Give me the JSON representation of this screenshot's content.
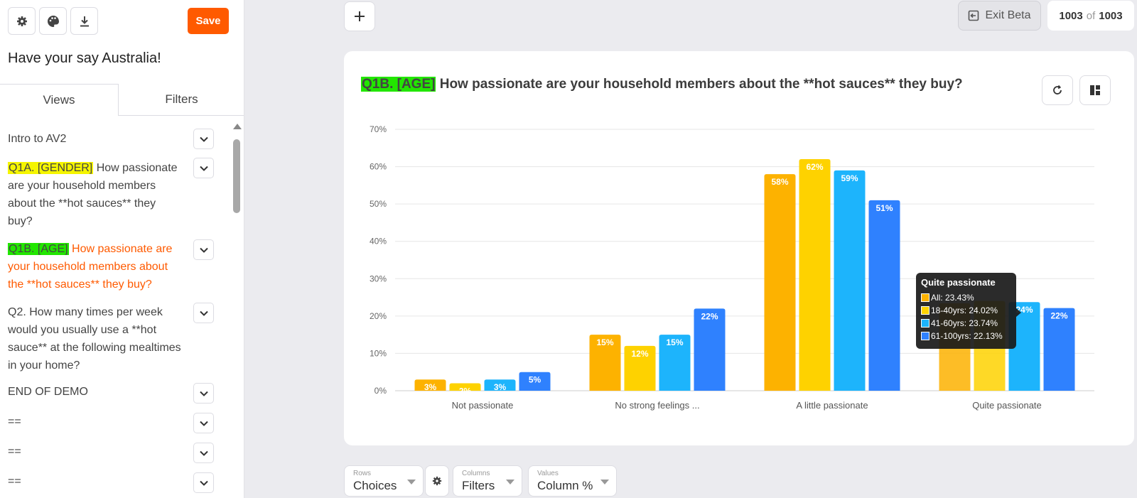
{
  "sidebar": {
    "save_label": "Save",
    "project_title": "Have your say Australia!",
    "tabs": [
      "Views",
      "Filters"
    ],
    "items": [
      {
        "tag": "",
        "text": "Intro to AV2"
      },
      {
        "tag": "Q1A. [GENDER]",
        "text": " How passionate are your household members about the **hot sauces** they buy?"
      },
      {
        "tag": "Q1B. [AGE]",
        "text": " How passionate are your household members about the **hot sauces** they buy?"
      },
      {
        "tag": "",
        "text": "Q2. How many times per week would you usually use a **hot sauce** at the following mealtimes in your home?"
      },
      {
        "tag": "",
        "text": "END OF DEMO"
      },
      {
        "tag": "",
        "text": "=="
      },
      {
        "tag": "",
        "text": "=="
      },
      {
        "tag": "",
        "text": "=="
      }
    ]
  },
  "topbar": {
    "exit_beta_label": "Exit Beta",
    "count_current": "1003",
    "count_of": "of",
    "count_total": "1003"
  },
  "card": {
    "title_tag": "Q1B. [AGE]",
    "title_text": " How passionate are your household members about the **hot sauces** they buy?"
  },
  "chart_data": {
    "type": "bar",
    "categories": [
      "Not passionate",
      "No strong feelings ...",
      "A little passionate",
      "Quite passionate"
    ],
    "series": [
      {
        "name": "All",
        "color": "#fdb200",
        "values": [
          3,
          15,
          58,
          23.43
        ],
        "labels": [
          "3%",
          "15%",
          "58%",
          ""
        ]
      },
      {
        "name": "18-40yrs",
        "color": "#fed200",
        "values": [
          2,
          12,
          62,
          24.02
        ],
        "labels": [
          "2%",
          "12%",
          "62%",
          ""
        ]
      },
      {
        "name": "41-60yrs",
        "color": "#1db4fc",
        "values": [
          3,
          15,
          59,
          23.74
        ],
        "labels": [
          "3%",
          "15%",
          "59%",
          "24%"
        ]
      },
      {
        "name": "61-100yrs",
        "color": "#2f81fe",
        "values": [
          5,
          22,
          51,
          22.13
        ],
        "labels": [
          "5%",
          "22%",
          "51%",
          "22%"
        ]
      }
    ],
    "y_ticks": [
      "0%",
      "10%",
      "20%",
      "30%",
      "40%",
      "50%",
      "60%",
      "70%"
    ],
    "ylim": [
      0,
      70
    ],
    "grid": true,
    "tooltip": {
      "title": "Quite passionate",
      "rows": [
        "All: 23.43%",
        "18-40yrs: 24.02%",
        "41-60yrs: 23.74%",
        "61-100yrs: 22.13%"
      ]
    }
  },
  "controls": {
    "rows_label": "Rows",
    "rows_value": "Choices",
    "columns_label": "Columns",
    "columns_value": "Filters",
    "values_label": "Values",
    "values_value": "Column %"
  }
}
